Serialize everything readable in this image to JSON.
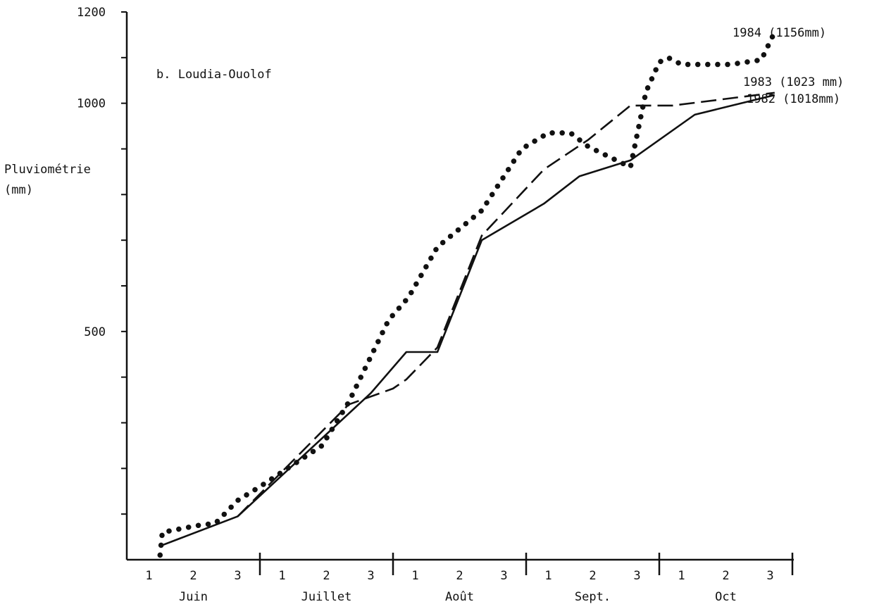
{
  "chart_data": {
    "type": "line",
    "title": "b. Loudia-Ouolof",
    "ylabel": [
      "Pluviométrie",
      "(mm)"
    ],
    "ylim": [
      0,
      1200
    ],
    "y_tick_labels": [
      {
        "value": 1200,
        "label": "1200"
      },
      {
        "value": 1000,
        "label": "1000"
      },
      {
        "value": 500,
        "label": "500"
      }
    ],
    "y_minor_ticks": [
      100,
      200,
      300,
      400,
      600,
      700,
      800,
      900,
      1100
    ],
    "xlim": [
      0,
      15
    ],
    "months": [
      {
        "label": "Juin",
        "decades": [
          "1",
          "2",
          "3"
        ]
      },
      {
        "label": "Juillet",
        "decades": [
          "1",
          "2",
          "3"
        ]
      },
      {
        "label": "Août",
        "decades": [
          "1",
          "2",
          "3"
        ]
      },
      {
        "label": "Sept.",
        "decades": [
          "1",
          "2",
          "3"
        ]
      },
      {
        "label": "Oct",
        "decades": [
          "1",
          "2",
          "3"
        ]
      }
    ],
    "series": [
      {
        "name": "1982 (1018mm)",
        "style": "solid",
        "x": [
          0.75,
          2.5,
          5.5,
          6.3,
          7.0,
          8.0,
          9.4,
          10.2,
          11.35,
          12.8,
          14.6
        ],
        "y": [
          30,
          95,
          365,
          455,
          455,
          700,
          780,
          840,
          875,
          975,
          1018
        ]
      },
      {
        "name": "1983 (1023 mm)",
        "style": "dashed",
        "x": [
          2.5,
          5.0,
          6.0,
          6.3,
          7.0,
          8.0,
          9.4,
          10.4,
          11.35,
          12.3,
          14.6
        ],
        "y": [
          95,
          340,
          375,
          395,
          465,
          710,
          855,
          920,
          995,
          995,
          1023
        ]
      },
      {
        "name": "1984 (1156mm)",
        "style": "dotted",
        "x": [
          0.75,
          0.8,
          1.6,
          2.0,
          2.5,
          3.0,
          4.4,
          5.0,
          5.9,
          6.35,
          7.0,
          8.0,
          8.9,
          9.5,
          10.0,
          10.4,
          11.35,
          11.7,
          12.0,
          12.2,
          12.5,
          13.6,
          14.3,
          14.6
        ],
        "y": [
          10,
          60,
          75,
          80,
          130,
          160,
          250,
          345,
          525,
          575,
          685,
          765,
          900,
          935,
          935,
          905,
          860,
          1025,
          1090,
          1100,
          1085,
          1085,
          1095,
          1156
        ]
      }
    ]
  }
}
